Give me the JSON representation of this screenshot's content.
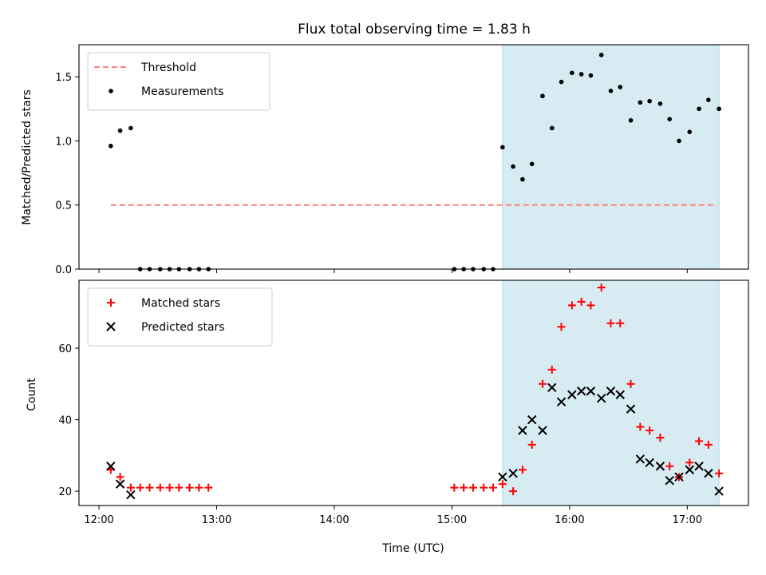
{
  "chart_data": {
    "title": "Flux total observing time = 1.83 h",
    "xlabel": "Time (UTC)",
    "x_ticks": [
      {
        "value": 12.0,
        "label": "12:00"
      },
      {
        "value": 13.0,
        "label": "13:00"
      },
      {
        "value": 14.0,
        "label": "14:00"
      },
      {
        "value": 15.0,
        "label": "15:00"
      },
      {
        "value": 16.0,
        "label": "16:00"
      },
      {
        "value": 17.0,
        "label": "17:00"
      }
    ],
    "xlim": [
      11.83,
      17.52
    ],
    "highlight_span": {
      "start": 15.43,
      "end": 17.27,
      "color": "#add8e6"
    },
    "panels": [
      {
        "type": "scatter",
        "ylabel": "Matched/Predicted stars",
        "ylim": [
          0,
          1.75
        ],
        "y_ticks": [
          {
            "value": 0.0,
            "label": "0.0"
          },
          {
            "value": 0.5,
            "label": "0.5"
          },
          {
            "value": 1.0,
            "label": "1.0"
          },
          {
            "value": 1.5,
            "label": "1.5"
          }
        ],
        "legend_position": "top-left",
        "threshold": {
          "name": "Threshold",
          "value": 0.5,
          "x_start": 12.1,
          "x_end": 17.25,
          "color": "#ff7f7f"
        },
        "series": [
          {
            "name": "Measurements",
            "color": "#000000",
            "marker": "dot",
            "points": [
              [
                12.1,
                0.96
              ],
              [
                12.18,
                1.08
              ],
              [
                12.27,
                1.1
              ],
              [
                12.35,
                0.0
              ],
              [
                12.43,
                0.0
              ],
              [
                12.52,
                0.0
              ],
              [
                12.6,
                0.0
              ],
              [
                12.68,
                0.0
              ],
              [
                12.77,
                0.0
              ],
              [
                12.85,
                0.0
              ],
              [
                12.93,
                0.0
              ],
              [
                15.02,
                0.0
              ],
              [
                15.1,
                0.0
              ],
              [
                15.18,
                0.0
              ],
              [
                15.27,
                0.0
              ],
              [
                15.35,
                0.0
              ],
              [
                15.43,
                0.95
              ],
              [
                15.52,
                0.8
              ],
              [
                15.6,
                0.7
              ],
              [
                15.68,
                0.82
              ],
              [
                15.77,
                1.35
              ],
              [
                15.85,
                1.1
              ],
              [
                15.93,
                1.46
              ],
              [
                16.02,
                1.53
              ],
              [
                16.1,
                1.52
              ],
              [
                16.18,
                1.51
              ],
              [
                16.27,
                1.67
              ],
              [
                16.35,
                1.39
              ],
              [
                16.43,
                1.42
              ],
              [
                16.52,
                1.16
              ],
              [
                16.6,
                1.3
              ],
              [
                16.68,
                1.31
              ],
              [
                16.77,
                1.29
              ],
              [
                16.85,
                1.17
              ],
              [
                16.93,
                1.0
              ],
              [
                17.02,
                1.07
              ],
              [
                17.1,
                1.25
              ],
              [
                17.18,
                1.32
              ],
              [
                17.27,
                1.25
              ]
            ]
          }
        ]
      },
      {
        "type": "scatter",
        "ylabel": "Count",
        "ylim": [
          16,
          79
        ],
        "y_ticks": [
          {
            "value": 20,
            "label": "20"
          },
          {
            "value": 40,
            "label": "40"
          },
          {
            "value": 60,
            "label": "60"
          }
        ],
        "legend_position": "top-left",
        "series": [
          {
            "name": "Matched stars",
            "color": "#ff0000",
            "marker": "plus",
            "points": [
              [
                12.1,
                26
              ],
              [
                12.18,
                24
              ],
              [
                12.27,
                21
              ],
              [
                12.35,
                21
              ],
              [
                12.43,
                21
              ],
              [
                12.52,
                21
              ],
              [
                12.6,
                21
              ],
              [
                12.68,
                21
              ],
              [
                12.77,
                21
              ],
              [
                12.85,
                21
              ],
              [
                12.93,
                21
              ],
              [
                15.02,
                21
              ],
              [
                15.1,
                21
              ],
              [
                15.18,
                21
              ],
              [
                15.27,
                21
              ],
              [
                15.35,
                21
              ],
              [
                15.43,
                22
              ],
              [
                15.52,
                20
              ],
              [
                15.6,
                26
              ],
              [
                15.68,
                33
              ],
              [
                15.77,
                50
              ],
              [
                15.85,
                54
              ],
              [
                15.93,
                66
              ],
              [
                16.02,
                72
              ],
              [
                16.1,
                73
              ],
              [
                16.18,
                72
              ],
              [
                16.27,
                77
              ],
              [
                16.35,
                67
              ],
              [
                16.43,
                67
              ],
              [
                16.52,
                50
              ],
              [
                16.6,
                38
              ],
              [
                16.68,
                37
              ],
              [
                16.77,
                35
              ],
              [
                16.85,
                27
              ],
              [
                16.93,
                24
              ],
              [
                17.02,
                28
              ],
              [
                17.1,
                34
              ],
              [
                17.18,
                33
              ],
              [
                17.27,
                25
              ]
            ]
          },
          {
            "name": "Predicted stars",
            "color": "#000000",
            "marker": "x",
            "points": [
              [
                12.1,
                27
              ],
              [
                12.18,
                22
              ],
              [
                12.27,
                19
              ],
              [
                15.43,
                24
              ],
              [
                15.52,
                25
              ],
              [
                15.6,
                37
              ],
              [
                15.68,
                40
              ],
              [
                15.77,
                37
              ],
              [
                15.85,
                49
              ],
              [
                15.93,
                45
              ],
              [
                16.02,
                47
              ],
              [
                16.1,
                48
              ],
              [
                16.18,
                48
              ],
              [
                16.27,
                46
              ],
              [
                16.35,
                48
              ],
              [
                16.43,
                47
              ],
              [
                16.52,
                43
              ],
              [
                16.6,
                29
              ],
              [
                16.68,
                28
              ],
              [
                16.77,
                27
              ],
              [
                16.85,
                23
              ],
              [
                16.93,
                24
              ],
              [
                17.02,
                26
              ],
              [
                17.1,
                27
              ],
              [
                17.18,
                25
              ],
              [
                17.27,
                20
              ]
            ]
          }
        ]
      }
    ]
  }
}
